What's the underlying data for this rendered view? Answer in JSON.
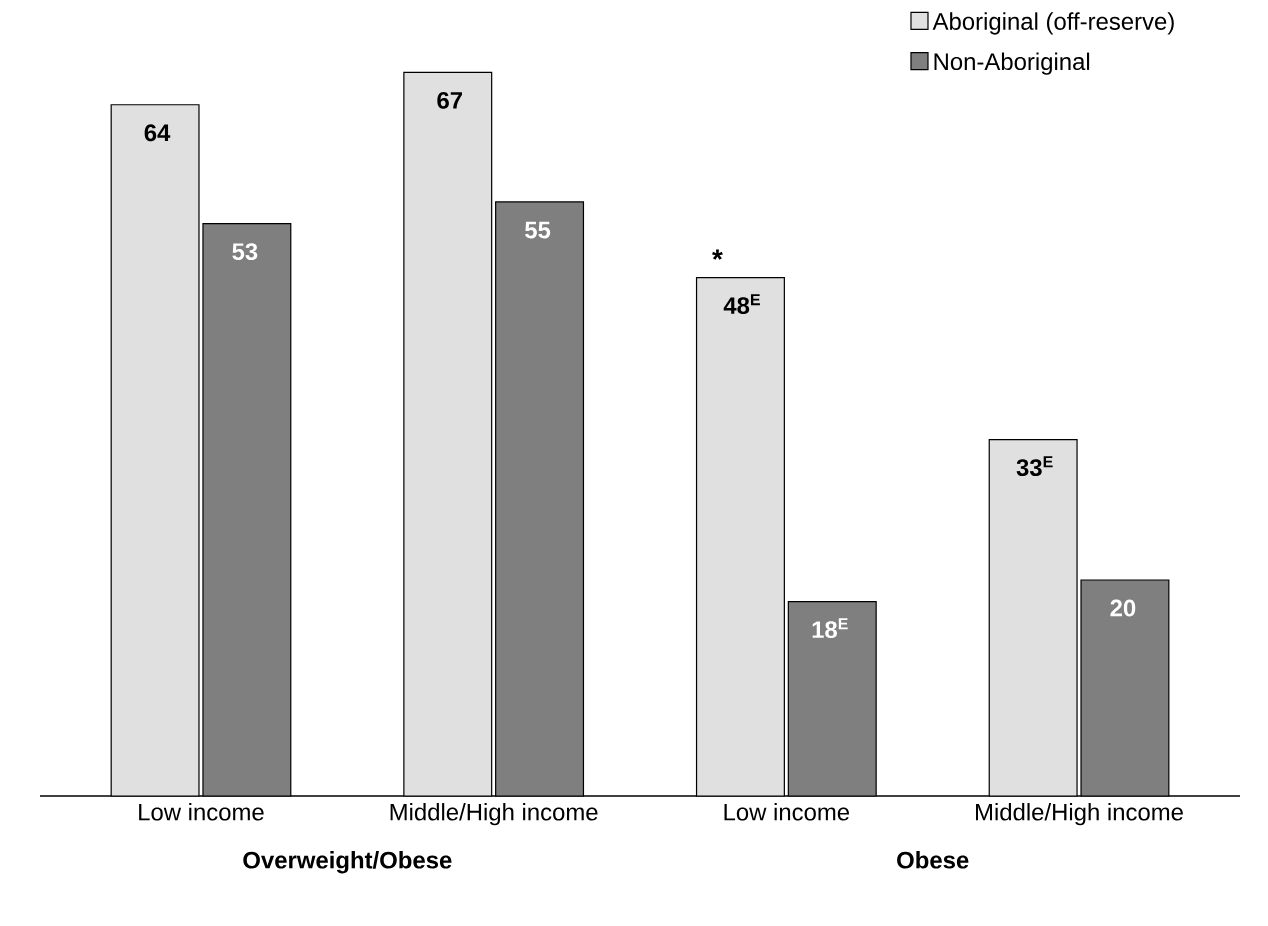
{
  "chart_data": {
    "type": "bar",
    "categories": [
      "Low income",
      "Middle/High income",
      "Low income",
      "Middle/High income"
    ],
    "series": [
      {
        "name": "Aboriginal (off-reserve)",
        "color": "#e0e0e0",
        "values": [
          64,
          67,
          48,
          33
        ],
        "value_labels": [
          "64",
          "67",
          "48$^{E}$",
          "33$^{E}$"
        ]
      },
      {
        "name": "Non-Aboriginal",
        "color": "#7f7f7f",
        "values": [
          53,
          55,
          18,
          20
        ],
        "value_labels": [
          "53",
          "55",
          "18$^{E}$",
          "20"
        ]
      }
    ],
    "tick_labels": "x",
    "legend": "top right",
    "grid": false,
    "annotations": [
      "Overweight/Obese",
      "Obese",
      "*"
    ]
  }
}
